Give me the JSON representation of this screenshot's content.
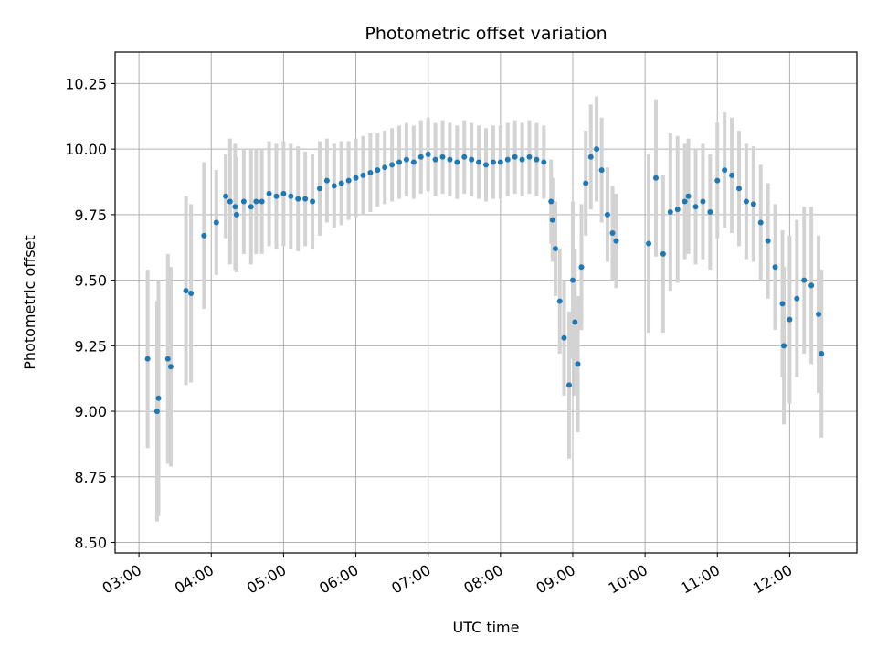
{
  "chart_data": {
    "type": "scatter",
    "title": "Photometric offset variation",
    "xlabel": "UTC time",
    "ylabel": "Photometric offset",
    "grid": true,
    "xlim_hours": [
      2.67,
      12.93
    ],
    "ylim": [
      8.46,
      10.37
    ],
    "x_tick_values": [
      3,
      4,
      5,
      6,
      7,
      8,
      9,
      10,
      11,
      12
    ],
    "x_tick_labels": [
      "03:00",
      "04:00",
      "05:00",
      "06:00",
      "07:00",
      "08:00",
      "09:00",
      "10:00",
      "11:00",
      "12:00"
    ],
    "y_tick_values": [
      8.5,
      8.75,
      9.0,
      9.25,
      9.5,
      9.75,
      10.0,
      10.25
    ],
    "y_tick_labels": [
      "8.50",
      "8.75",
      "9.00",
      "9.25",
      "9.50",
      "9.75",
      "10.00",
      "10.25"
    ],
    "colors": {
      "points": "#1f77b4",
      "errorbars": "#d3d3d3",
      "grid": "#b0b0b0"
    },
    "series": [
      {
        "x_hours": [
          3.12,
          3.25,
          3.27,
          3.4,
          3.44,
          3.65,
          3.72,
          3.9,
          4.07,
          4.2,
          4.26,
          4.33,
          4.35,
          4.45,
          4.55,
          4.62,
          4.7,
          4.8,
          4.9,
          5.0,
          5.1,
          5.2,
          5.3,
          5.4,
          5.5,
          5.6,
          5.7,
          5.8,
          5.9,
          6.0,
          6.1,
          6.2,
          6.3,
          6.4,
          6.5,
          6.6,
          6.7,
          6.8,
          6.9,
          7.0,
          7.1,
          7.2,
          7.3,
          7.4,
          7.5,
          7.6,
          7.7,
          7.8,
          7.9,
          8.0,
          8.1,
          8.2,
          8.3,
          8.4,
          8.5,
          8.6,
          8.7,
          8.72,
          8.76,
          8.82,
          8.88,
          8.95,
          9.0,
          9.03,
          9.07,
          9.12,
          9.18,
          9.25,
          9.33,
          9.4,
          9.48,
          9.55,
          9.6,
          10.05,
          10.15,
          10.25,
          10.35,
          10.45,
          10.55,
          10.6,
          10.7,
          10.8,
          10.9,
          11.0,
          11.1,
          11.2,
          11.3,
          11.4,
          11.5,
          11.6,
          11.7,
          11.8,
          11.9,
          11.92,
          12.0,
          12.1,
          12.2,
          12.3,
          12.4,
          12.44
        ],
        "y": [
          9.2,
          9.0,
          9.05,
          9.2,
          9.17,
          9.46,
          9.45,
          9.67,
          9.72,
          9.82,
          9.8,
          9.78,
          9.75,
          9.8,
          9.78,
          9.8,
          9.8,
          9.83,
          9.82,
          9.83,
          9.82,
          9.81,
          9.81,
          9.8,
          9.85,
          9.88,
          9.86,
          9.87,
          9.88,
          9.89,
          9.9,
          9.91,
          9.92,
          9.93,
          9.94,
          9.95,
          9.96,
          9.95,
          9.97,
          9.98,
          9.96,
          9.97,
          9.96,
          9.95,
          9.97,
          9.96,
          9.95,
          9.94,
          9.95,
          9.95,
          9.96,
          9.97,
          9.96,
          9.97,
          9.96,
          9.95,
          9.8,
          9.73,
          9.62,
          9.42,
          9.28,
          9.1,
          9.5,
          9.34,
          9.18,
          9.55,
          9.87,
          9.97,
          10.0,
          9.92,
          9.75,
          9.68,
          9.65,
          9.64,
          9.89,
          9.6,
          9.76,
          9.77,
          9.8,
          9.82,
          9.78,
          9.8,
          9.76,
          9.88,
          9.92,
          9.9,
          9.85,
          9.8,
          9.79,
          9.72,
          9.65,
          9.55,
          9.41,
          9.25,
          9.35,
          9.43,
          9.5,
          9.48,
          9.37,
          9.22
        ],
        "err": [
          0.34,
          0.42,
          0.45,
          0.4,
          0.38,
          0.36,
          0.34,
          0.28,
          0.2,
          0.16,
          0.24,
          0.24,
          0.22,
          0.2,
          0.22,
          0.2,
          0.2,
          0.2,
          0.2,
          0.2,
          0.2,
          0.2,
          0.18,
          0.18,
          0.18,
          0.16,
          0.16,
          0.16,
          0.15,
          0.15,
          0.15,
          0.15,
          0.14,
          0.14,
          0.14,
          0.14,
          0.14,
          0.14,
          0.14,
          0.14,
          0.14,
          0.14,
          0.14,
          0.14,
          0.14,
          0.14,
          0.14,
          0.14,
          0.14,
          0.14,
          0.14,
          0.14,
          0.14,
          0.14,
          0.14,
          0.14,
          0.16,
          0.16,
          0.18,
          0.2,
          0.22,
          0.28,
          0.3,
          0.28,
          0.26,
          0.24,
          0.2,
          0.2,
          0.2,
          0.2,
          0.18,
          0.18,
          0.18,
          0.34,
          0.3,
          0.3,
          0.3,
          0.28,
          0.22,
          0.22,
          0.22,
          0.22,
          0.22,
          0.22,
          0.22,
          0.22,
          0.22,
          0.22,
          0.22,
          0.22,
          0.22,
          0.24,
          0.28,
          0.3,
          0.32,
          0.3,
          0.28,
          0.3,
          0.3,
          0.32
        ]
      }
    ]
  }
}
